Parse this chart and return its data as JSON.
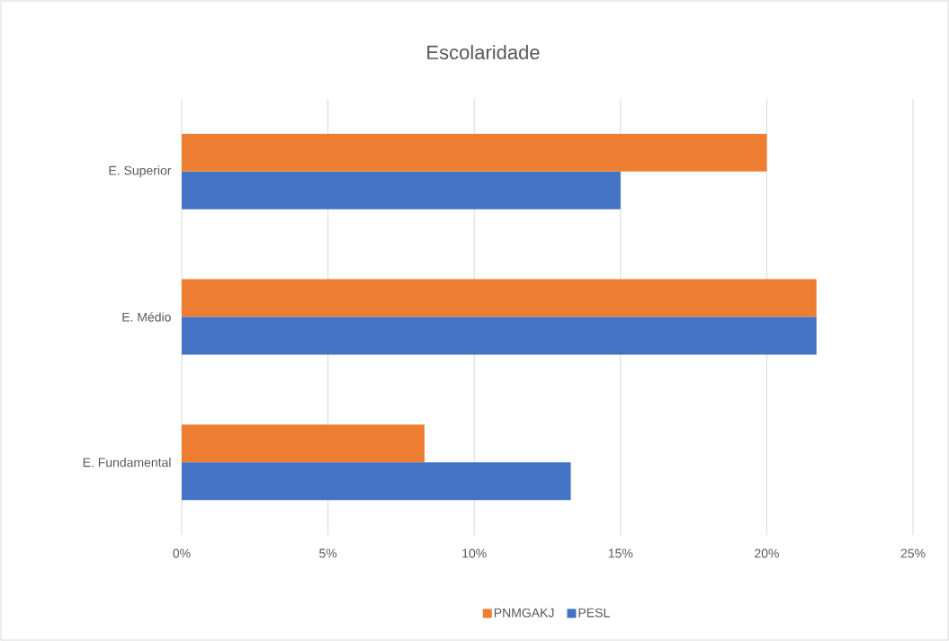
{
  "chart_data": {
    "type": "bar",
    "orientation": "horizontal",
    "title": "Escolaridade",
    "categories": [
      "E. Superior",
      "E. Médio",
      "E. Fundamental"
    ],
    "series": [
      {
        "name": "PNMGAKJ",
        "color": "#ed7d31",
        "values": [
          20,
          21.7,
          8.3
        ]
      },
      {
        "name": "PESL",
        "color": "#4472c4",
        "values": [
          15,
          21.7,
          13.3
        ]
      }
    ],
    "xlim": [
      0,
      25
    ],
    "xticks": [
      {
        "value": 0,
        "label": "0%"
      },
      {
        "value": 5,
        "label": "5%"
      },
      {
        "value": 10,
        "label": "10%"
      },
      {
        "value": 15,
        "label": "15%"
      },
      {
        "value": 20,
        "label": "20%"
      },
      {
        "value": 25,
        "label": "25%"
      }
    ],
    "grid": "x",
    "legend": "bottom"
  }
}
